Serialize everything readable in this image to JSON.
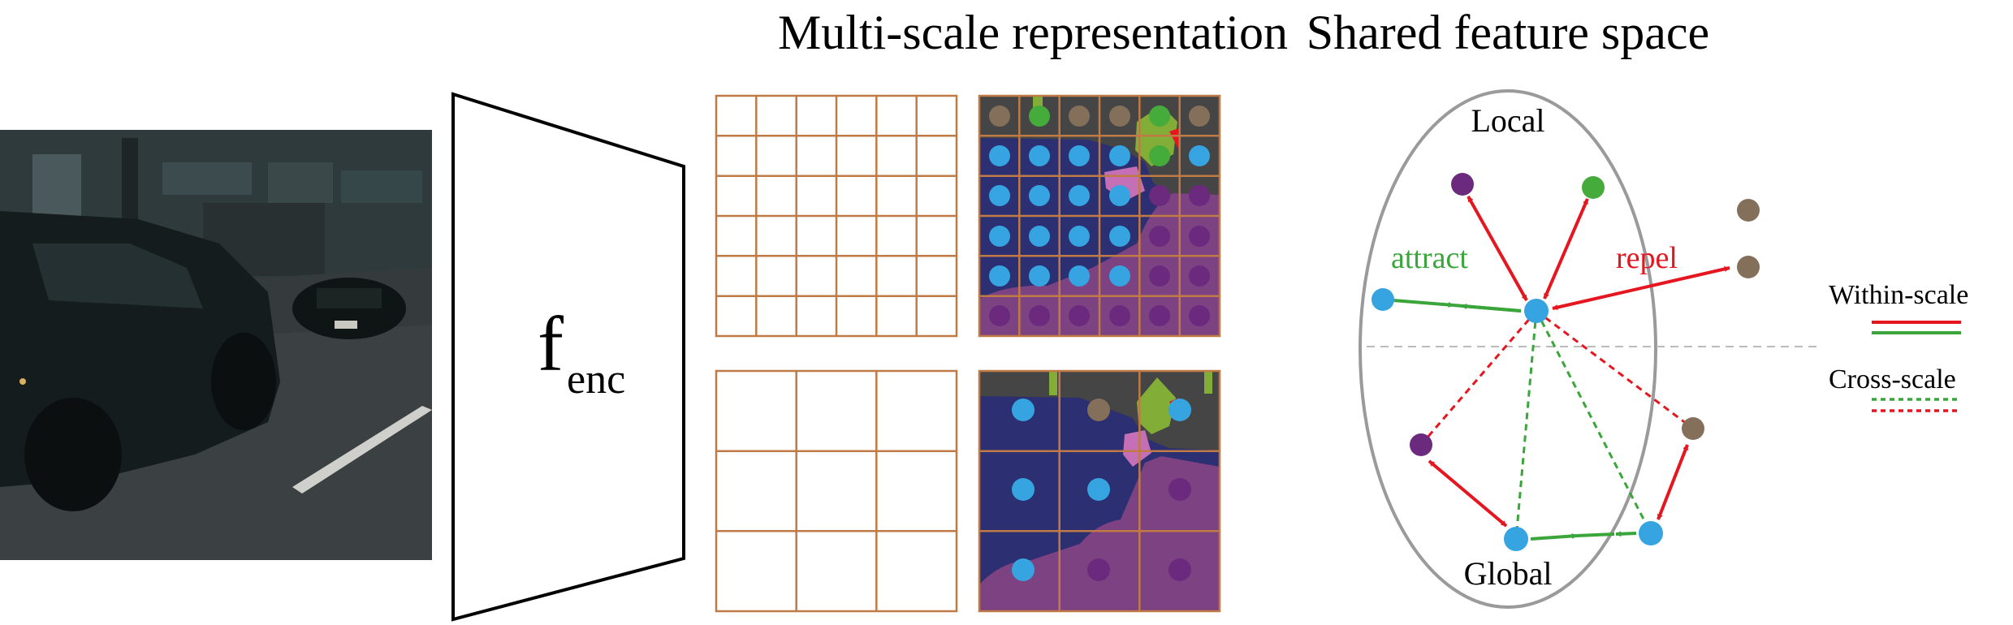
{
  "titles": {
    "multi_scale": "Multi-scale representation",
    "shared_space": "Shared feature space"
  },
  "encoder": {
    "f": "f",
    "subscript": "enc"
  },
  "space": {
    "local": "Local",
    "global": "Global",
    "attract": "attract",
    "repel": "repel"
  },
  "legend": {
    "within_scale": "Within-scale",
    "cross_scale": "Cross-scale"
  },
  "colors": {
    "grid_line": "#c07a45",
    "road": "#454545",
    "car": "#2c2f72",
    "sidewalk": "#7d4282",
    "vegetation": "#82ad36",
    "cyan_dot": "#36a4e0",
    "purple_dot": "#6b2a7e",
    "brown_dot": "#84705a",
    "green_dot": "#45ab3a",
    "repel_red": "#e5161f",
    "attract_green": "#3aa53a",
    "ellipse": "#9a9a9a"
  }
}
